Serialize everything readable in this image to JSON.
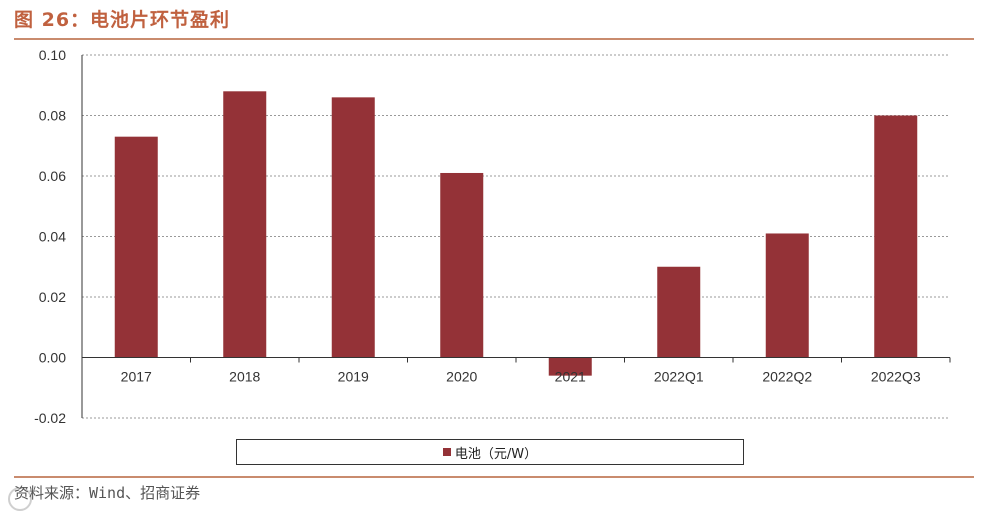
{
  "figure_title": "图 26：电池片环节盈利",
  "source_text": "资料来源：Wind、招商证券",
  "chart_data": {
    "type": "bar",
    "title": "",
    "categories": [
      "2017",
      "2018",
      "2019",
      "2020",
      "2021",
      "2022Q1",
      "2022Q2",
      "2022Q3"
    ],
    "series": [
      {
        "name": "电池（元/W）",
        "values": [
          0.073,
          0.088,
          0.086,
          0.061,
          -0.006,
          0.03,
          0.041,
          0.08
        ],
        "color": "#943237"
      }
    ],
    "yticks": [
      "0.10",
      "0.08",
      "0.06",
      "0.04",
      "0.02",
      "0.00",
      "-0.02"
    ],
    "ylim": [
      -0.02,
      0.1
    ],
    "grid": "dashed horizontal",
    "legend_position": "bottom"
  }
}
